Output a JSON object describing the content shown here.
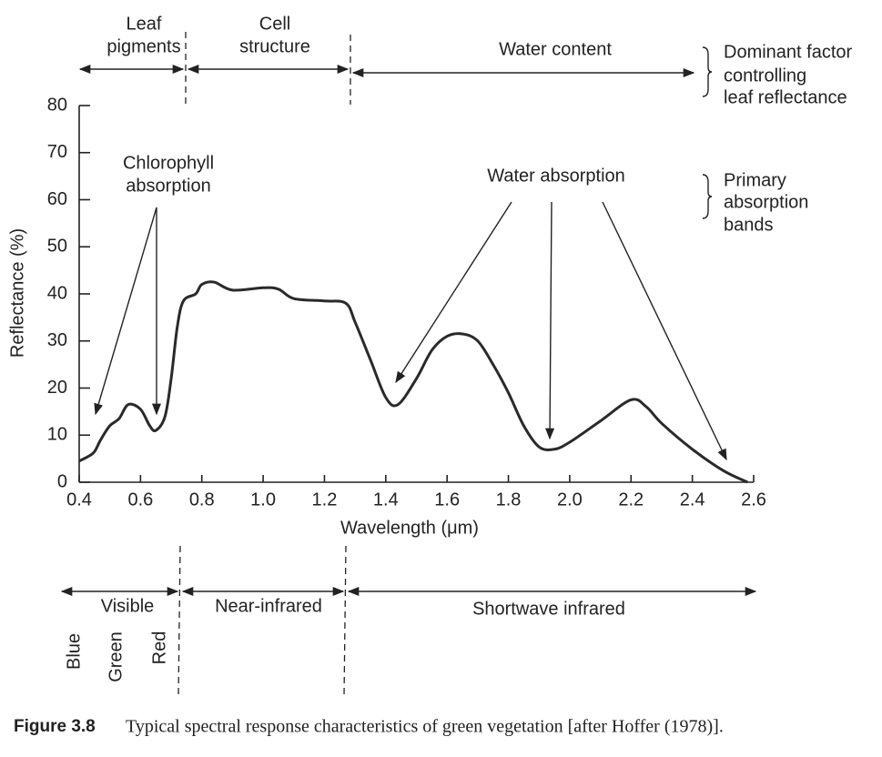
{
  "chart_data": {
    "type": "line",
    "x": [
      0.4,
      0.43,
      0.45,
      0.47,
      0.5,
      0.53,
      0.56,
      0.6,
      0.63,
      0.65,
      0.68,
      0.7,
      0.72,
      0.74,
      0.78,
      0.8,
      0.84,
      0.9,
      1.0,
      1.05,
      1.1,
      1.2,
      1.27,
      1.3,
      1.35,
      1.4,
      1.44,
      1.5,
      1.55,
      1.6,
      1.65,
      1.7,
      1.75,
      1.8,
      1.85,
      1.9,
      1.95,
      2.0,
      2.1,
      2.2,
      2.25,
      2.3,
      2.4,
      2.5,
      2.58
    ],
    "values": [
      4.5,
      5.5,
      6.5,
      9,
      12,
      13.5,
      16.5,
      15.5,
      12,
      11,
      14,
      22,
      33,
      38.5,
      40,
      42,
      42.5,
      40.8,
      41.3,
      41,
      39,
      38.5,
      38,
      34,
      26,
      18,
      16.5,
      22,
      28,
      31,
      31.5,
      30,
      25,
      19,
      12,
      7.5,
      7,
      8.5,
      13,
      17.5,
      16,
      12.5,
      7,
      2.5,
      0
    ],
    "color": "#2a2a2a",
    "xlabel": "Wavelength (μm)",
    "ylabel": "Reflectance (%)",
    "xlim": [
      0.4,
      2.6
    ],
    "ylim": [
      0,
      80
    ],
    "xticks": [
      0.4,
      0.6,
      0.8,
      {
        "value": 1,
        "label": "1.0"
      },
      1.2,
      1.4,
      1.6,
      1.8,
      {
        "value": 2,
        "label": "2.0"
      },
      2.2,
      2.4,
      2.6
    ],
    "yticks": [
      0,
      10,
      20,
      30,
      40,
      50,
      60,
      70,
      80
    ],
    "regions_top": [
      [
        "Leaf",
        "pigments"
      ],
      [
        "Cell",
        "structure"
      ],
      [
        "Water content"
      ]
    ],
    "regions_top_note": [
      "Dominant factor",
      "controlling",
      "leaf reflectance"
    ],
    "absorption_labels": [
      [
        "Chlorophyll",
        "absorption"
      ],
      [
        "Water absorption"
      ]
    ],
    "absorption_note": [
      "Primary",
      "absorption",
      "bands"
    ],
    "regions_bottom": [
      "Visible",
      "Near-infrared",
      "Shortwave infrared"
    ],
    "visible_colors": [
      "Blue",
      "Green",
      "Red"
    ],
    "caption": {
      "label": "Figure 3.8",
      "text": "Typical spectral response characteristics of green vegetation [after Hoffer (1978)]."
    }
  }
}
